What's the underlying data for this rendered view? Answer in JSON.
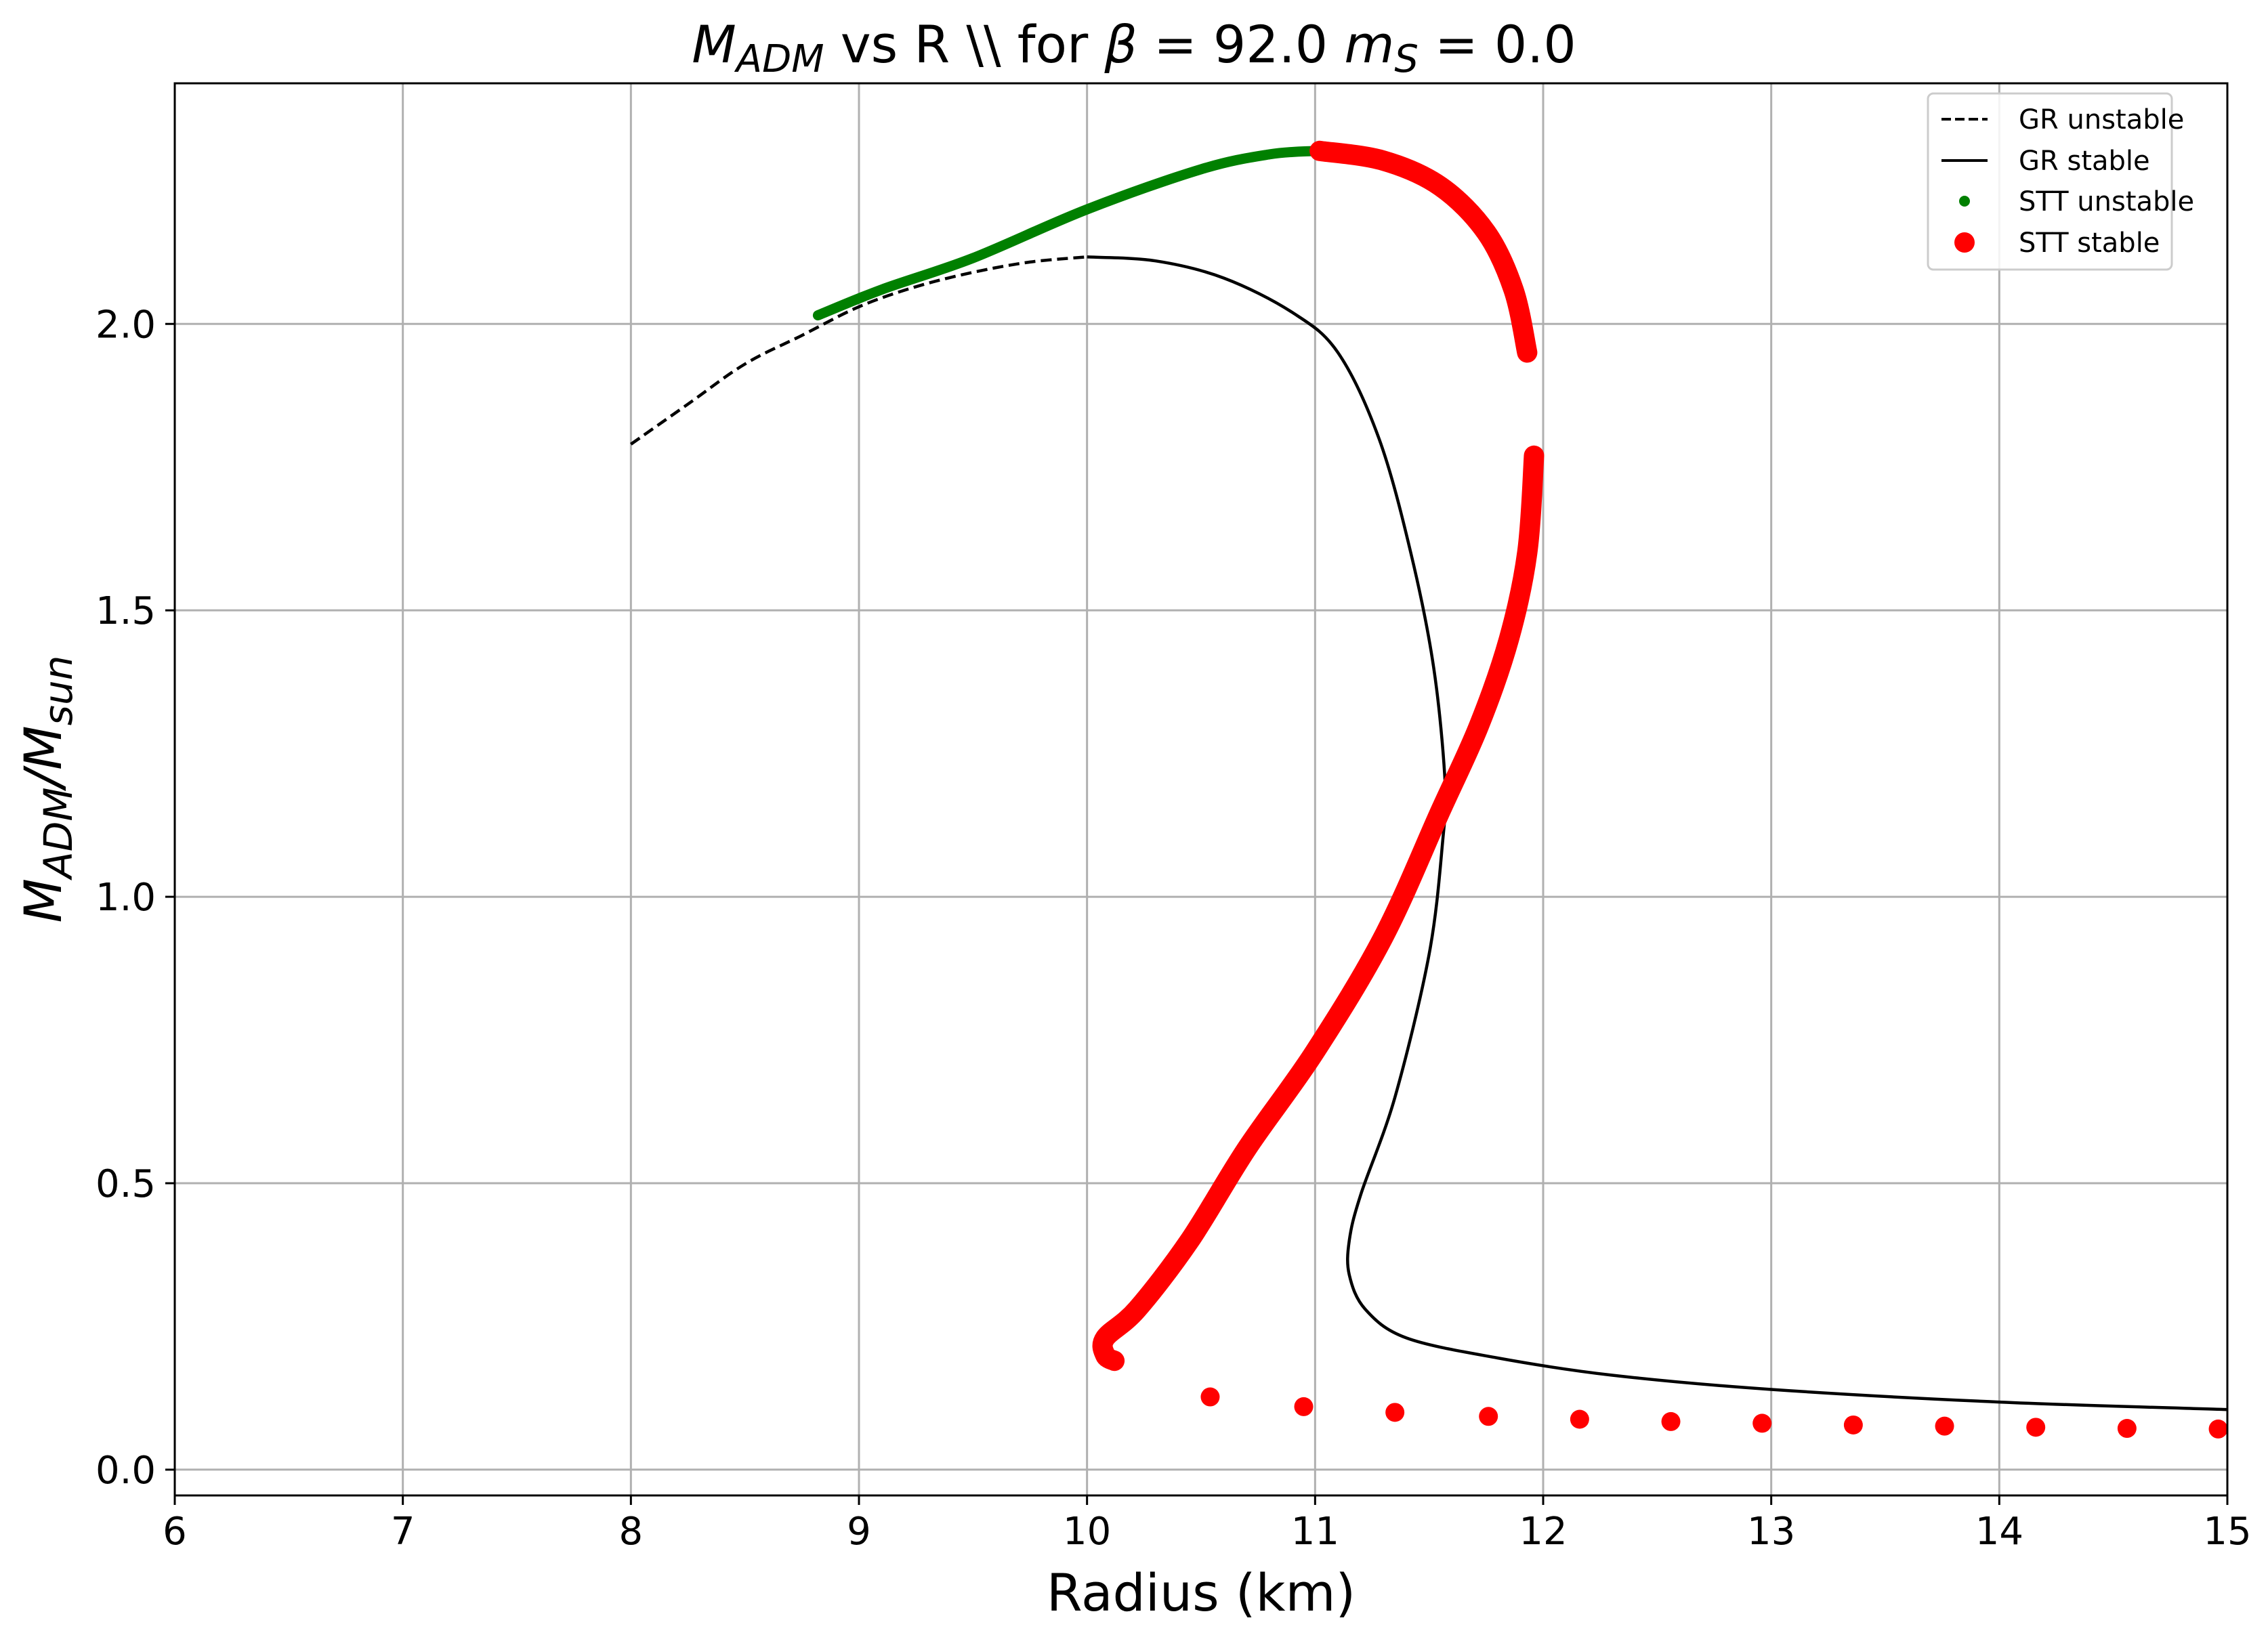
{
  "chart_data": {
    "type": "scatter",
    "title": {
      "main": "M",
      "main_sub": "ADM",
      "text": " vs R \\\\ for ",
      "beta_symbol": "β",
      "beta_value": " = 92.0 ",
      "ms_symbol": "m",
      "ms_sub": "S",
      "ms_value": " = 0.0"
    },
    "xlabel": "Radius (km)",
    "ylabel": {
      "num": "M",
      "num_sub": "ADM",
      "slash": "/",
      "den": "M",
      "den_sub": "sun"
    },
    "xlim": [
      6,
      15
    ],
    "ylim": [
      -0.045,
      2.42
    ],
    "x_ticks": [
      "6",
      "7",
      "8",
      "9",
      "10",
      "11",
      "12",
      "13",
      "14",
      "15"
    ],
    "y_ticks": [
      "0.0",
      "0.5",
      "1.0",
      "1.5",
      "2.0"
    ],
    "grid": true,
    "legend_position": "top-right",
    "colors": {
      "gr": "#000000",
      "stt_unstable": "#008000",
      "stt_stable": "#ff0000",
      "grid": "#b0b0b0"
    },
    "series": [
      {
        "name": "GR unstable",
        "style": "dashed-line",
        "points": [
          [
            8.0,
            1.79
          ],
          [
            8.25,
            1.86
          ],
          [
            8.5,
            1.93
          ],
          [
            8.75,
            1.98
          ],
          [
            9.0,
            2.03
          ],
          [
            9.25,
            2.065
          ],
          [
            9.5,
            2.09
          ],
          [
            9.75,
            2.108
          ],
          [
            10.0,
            2.117
          ]
        ]
      },
      {
        "name": "GR stable",
        "style": "solid-line",
        "points": [
          [
            10.0,
            2.117
          ],
          [
            10.3,
            2.11
          ],
          [
            10.6,
            2.08
          ],
          [
            10.9,
            2.02
          ],
          [
            11.1,
            1.95
          ],
          [
            11.28,
            1.8
          ],
          [
            11.42,
            1.6
          ],
          [
            11.52,
            1.4
          ],
          [
            11.57,
            1.2
          ],
          [
            11.56,
            1.1
          ],
          [
            11.5,
            0.9
          ],
          [
            11.35,
            0.65
          ],
          [
            11.2,
            0.48
          ],
          [
            11.15,
            0.4
          ],
          [
            11.15,
            0.34
          ],
          [
            11.22,
            0.28
          ],
          [
            11.4,
            0.23
          ],
          [
            11.8,
            0.195
          ],
          [
            12.3,
            0.165
          ],
          [
            13.0,
            0.14
          ],
          [
            14.0,
            0.118
          ],
          [
            15.0,
            0.105
          ]
        ]
      },
      {
        "name": "STT unstable",
        "style": "dense-small-markers",
        "points": [
          [
            8.82,
            2.015
          ],
          [
            9.1,
            2.06
          ],
          [
            9.5,
            2.115
          ],
          [
            10.0,
            2.2
          ],
          [
            10.5,
            2.27
          ],
          [
            10.8,
            2.296
          ],
          [
            11.0,
            2.302
          ]
        ]
      },
      {
        "name": "STT stable",
        "style": "dense-large-markers",
        "branches": [
          [
            [
              11.02,
              2.302
            ],
            [
              11.3,
              2.285
            ],
            [
              11.55,
              2.24
            ],
            [
              11.75,
              2.16
            ],
            [
              11.87,
              2.06
            ],
            [
              11.93,
              1.95
            ]
          ],
          [
            [
              11.96,
              1.77
            ],
            [
              11.93,
              1.6
            ],
            [
              11.85,
              1.45
            ],
            [
              11.72,
              1.3
            ],
            [
              11.55,
              1.15
            ],
            [
              11.3,
              0.93
            ],
            [
              11.0,
              0.73
            ],
            [
              10.7,
              0.56
            ],
            [
              10.45,
              0.4
            ],
            [
              10.22,
              0.28
            ],
            [
              10.08,
              0.23
            ],
            [
              10.08,
              0.2
            ],
            [
              10.12,
              0.19
            ]
          ]
        ],
        "sparse_points": [
          [
            10.54,
            0.127
          ],
          [
            10.95,
            0.11
          ],
          [
            11.35,
            0.1
          ],
          [
            11.76,
            0.093
          ],
          [
            12.16,
            0.088
          ],
          [
            12.56,
            0.084
          ],
          [
            12.96,
            0.081
          ],
          [
            13.36,
            0.078
          ],
          [
            13.76,
            0.076
          ],
          [
            14.16,
            0.074
          ],
          [
            14.56,
            0.072
          ],
          [
            14.96,
            0.071
          ]
        ]
      }
    ]
  }
}
